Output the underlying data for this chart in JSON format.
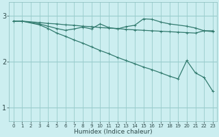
{
  "xlabel": "Humidex (Indice chaleur)",
  "bg_color": "#cceef0",
  "line_color": "#317a6e",
  "grid_color": "#99cccc",
  "xlim": [
    -0.5,
    23.5
  ],
  "ylim": [
    0.7,
    3.3
  ],
  "yticks": [
    1,
    2,
    3
  ],
  "xticks": [
    0,
    1,
    2,
    3,
    4,
    5,
    6,
    7,
    8,
    9,
    10,
    11,
    12,
    13,
    14,
    15,
    16,
    17,
    18,
    19,
    20,
    21,
    22,
    23
  ],
  "line1": {
    "x": [
      0,
      1,
      3,
      4,
      5,
      6,
      7,
      8,
      9,
      10,
      11,
      12,
      13,
      14,
      15,
      16,
      17,
      18,
      19,
      20,
      21,
      22,
      23
    ],
    "y": [
      2.88,
      2.88,
      2.85,
      2.83,
      2.82,
      2.8,
      2.79,
      2.77,
      2.76,
      2.74,
      2.73,
      2.72,
      2.7,
      2.69,
      2.68,
      2.67,
      2.66,
      2.65,
      2.64,
      2.63,
      2.62,
      2.67,
      2.67
    ]
  },
  "line2": {
    "x": [
      0,
      1,
      3,
      4,
      5,
      6,
      7,
      8,
      9,
      10,
      11,
      12,
      13,
      14,
      15,
      16,
      17,
      18,
      20,
      21,
      22,
      23
    ],
    "y": [
      2.88,
      2.88,
      2.82,
      2.77,
      2.72,
      2.68,
      2.71,
      2.75,
      2.71,
      2.82,
      2.74,
      2.71,
      2.76,
      2.79,
      2.93,
      2.92,
      2.86,
      2.82,
      2.77,
      2.73,
      2.67,
      2.65
    ]
  },
  "line3": {
    "x": [
      0,
      1,
      3,
      4,
      5,
      6,
      7,
      8,
      9,
      10,
      11,
      12,
      13,
      14,
      15,
      16,
      17,
      18,
      19,
      20,
      21,
      22,
      23
    ],
    "y": [
      2.88,
      2.88,
      2.8,
      2.72,
      2.62,
      2.55,
      2.47,
      2.4,
      2.32,
      2.24,
      2.17,
      2.09,
      2.02,
      1.95,
      1.88,
      1.82,
      1.75,
      1.68,
      1.62,
      2.02,
      1.75,
      1.65,
      1.35
    ]
  }
}
